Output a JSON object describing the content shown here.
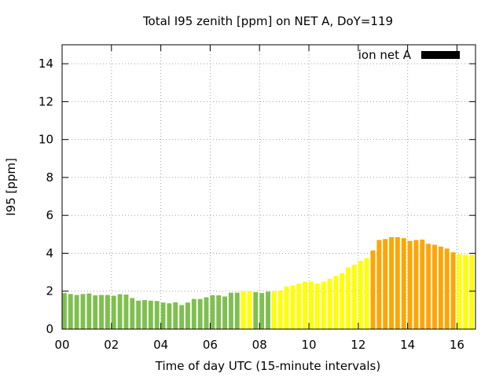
{
  "chart_data": {
    "type": "bar",
    "title": "Total I95 zenith [ppm] on NET A, DoY=119",
    "xlabel": "Time of day UTC (15-minute intervals)",
    "ylabel": "I95 [ppm]",
    "xlim": [
      0,
      16.75
    ],
    "ylim": [
      0,
      15
    ],
    "x_ticks": [
      {
        "value": 0,
        "label": "00"
      },
      {
        "value": 2,
        "label": "02"
      },
      {
        "value": 4,
        "label": "04"
      },
      {
        "value": 6,
        "label": "06"
      },
      {
        "value": 8,
        "label": "08"
      },
      {
        "value": 10,
        "label": "10"
      },
      {
        "value": 12,
        "label": "12"
      },
      {
        "value": 14,
        "label": "14"
      },
      {
        "value": 16,
        "label": "16"
      }
    ],
    "y_ticks": [
      {
        "value": 0,
        "label": "0"
      },
      {
        "value": 2,
        "label": "2"
      },
      {
        "value": 4,
        "label": "4"
      },
      {
        "value": 6,
        "label": "6"
      },
      {
        "value": 8,
        "label": "8"
      },
      {
        "value": 10,
        "label": "10"
      },
      {
        "value": 12,
        "label": "12"
      },
      {
        "value": 14,
        "label": "14"
      }
    ],
    "grid": true,
    "legend": {
      "label": "ion net A",
      "color": "#000000",
      "position": "top-right"
    },
    "interval_hours": 0.25,
    "level_colors": {
      "low": "#7fbf4f",
      "moderate": "#ffff00",
      "elevated": "#ffa500"
    },
    "bars": [
      {
        "x": 0.0,
        "value": 1.9,
        "level": "low"
      },
      {
        "x": 0.25,
        "value": 1.85,
        "level": "low"
      },
      {
        "x": 0.5,
        "value": 1.8,
        "level": "low"
      },
      {
        "x": 0.75,
        "value": 1.85,
        "level": "low"
      },
      {
        "x": 1.0,
        "value": 1.88,
        "level": "low"
      },
      {
        "x": 1.25,
        "value": 1.78,
        "level": "low"
      },
      {
        "x": 1.5,
        "value": 1.8,
        "level": "low"
      },
      {
        "x": 1.75,
        "value": 1.8,
        "level": "low"
      },
      {
        "x": 2.0,
        "value": 1.76,
        "level": "low"
      },
      {
        "x": 2.25,
        "value": 1.84,
        "level": "low"
      },
      {
        "x": 2.5,
        "value": 1.82,
        "level": "low"
      },
      {
        "x": 2.75,
        "value": 1.64,
        "level": "low"
      },
      {
        "x": 3.0,
        "value": 1.5,
        "level": "low"
      },
      {
        "x": 3.25,
        "value": 1.53,
        "level": "low"
      },
      {
        "x": 3.5,
        "value": 1.5,
        "level": "low"
      },
      {
        "x": 3.75,
        "value": 1.48,
        "level": "low"
      },
      {
        "x": 4.0,
        "value": 1.4,
        "level": "low"
      },
      {
        "x": 4.25,
        "value": 1.36,
        "level": "low"
      },
      {
        "x": 4.5,
        "value": 1.41,
        "level": "low"
      },
      {
        "x": 4.75,
        "value": 1.27,
        "level": "low"
      },
      {
        "x": 5.0,
        "value": 1.4,
        "level": "low"
      },
      {
        "x": 5.25,
        "value": 1.59,
        "level": "low"
      },
      {
        "x": 5.5,
        "value": 1.59,
        "level": "low"
      },
      {
        "x": 5.75,
        "value": 1.68,
        "level": "low"
      },
      {
        "x": 6.0,
        "value": 1.79,
        "level": "low"
      },
      {
        "x": 6.25,
        "value": 1.78,
        "level": "low"
      },
      {
        "x": 6.5,
        "value": 1.72,
        "level": "low"
      },
      {
        "x": 6.75,
        "value": 1.92,
        "level": "low"
      },
      {
        "x": 7.0,
        "value": 1.92,
        "level": "low"
      },
      {
        "x": 7.25,
        "value": 2.0,
        "level": "moderate"
      },
      {
        "x": 7.5,
        "value": 2.0,
        "level": "moderate"
      },
      {
        "x": 7.75,
        "value": 1.95,
        "level": "low"
      },
      {
        "x": 8.0,
        "value": 1.9,
        "level": "low"
      },
      {
        "x": 8.25,
        "value": 1.98,
        "level": "low"
      },
      {
        "x": 8.5,
        "value": 2.0,
        "level": "moderate"
      },
      {
        "x": 8.75,
        "value": 2.04,
        "level": "moderate"
      },
      {
        "x": 9.0,
        "value": 2.25,
        "level": "moderate"
      },
      {
        "x": 9.25,
        "value": 2.3,
        "level": "moderate"
      },
      {
        "x": 9.5,
        "value": 2.4,
        "level": "moderate"
      },
      {
        "x": 9.75,
        "value": 2.5,
        "level": "moderate"
      },
      {
        "x": 10.0,
        "value": 2.5,
        "level": "moderate"
      },
      {
        "x": 10.25,
        "value": 2.4,
        "level": "moderate"
      },
      {
        "x": 10.5,
        "value": 2.5,
        "level": "moderate"
      },
      {
        "x": 10.75,
        "value": 2.65,
        "level": "moderate"
      },
      {
        "x": 11.0,
        "value": 2.8,
        "level": "moderate"
      },
      {
        "x": 11.25,
        "value": 2.95,
        "level": "moderate"
      },
      {
        "x": 11.5,
        "value": 3.25,
        "level": "moderate"
      },
      {
        "x": 11.75,
        "value": 3.4,
        "level": "moderate"
      },
      {
        "x": 12.0,
        "value": 3.6,
        "level": "moderate"
      },
      {
        "x": 12.25,
        "value": 3.75,
        "level": "moderate"
      },
      {
        "x": 12.5,
        "value": 4.15,
        "level": "elevated"
      },
      {
        "x": 12.75,
        "value": 4.7,
        "level": "elevated"
      },
      {
        "x": 13.0,
        "value": 4.75,
        "level": "elevated"
      },
      {
        "x": 13.25,
        "value": 4.85,
        "level": "elevated"
      },
      {
        "x": 13.5,
        "value": 4.85,
        "level": "elevated"
      },
      {
        "x": 13.75,
        "value": 4.8,
        "level": "elevated"
      },
      {
        "x": 14.0,
        "value": 4.65,
        "level": "elevated"
      },
      {
        "x": 14.25,
        "value": 4.7,
        "level": "elevated"
      },
      {
        "x": 14.5,
        "value": 4.72,
        "level": "elevated"
      },
      {
        "x": 14.75,
        "value": 4.5,
        "level": "elevated"
      },
      {
        "x": 15.0,
        "value": 4.45,
        "level": "elevated"
      },
      {
        "x": 15.25,
        "value": 4.35,
        "level": "elevated"
      },
      {
        "x": 15.5,
        "value": 4.25,
        "level": "elevated"
      },
      {
        "x": 15.75,
        "value": 4.05,
        "level": "elevated"
      },
      {
        "x": 16.0,
        "value": 3.95,
        "level": "moderate"
      },
      {
        "x": 16.25,
        "value": 3.92,
        "level": "moderate"
      },
      {
        "x": 16.5,
        "value": 3.92,
        "level": "moderate"
      }
    ]
  }
}
